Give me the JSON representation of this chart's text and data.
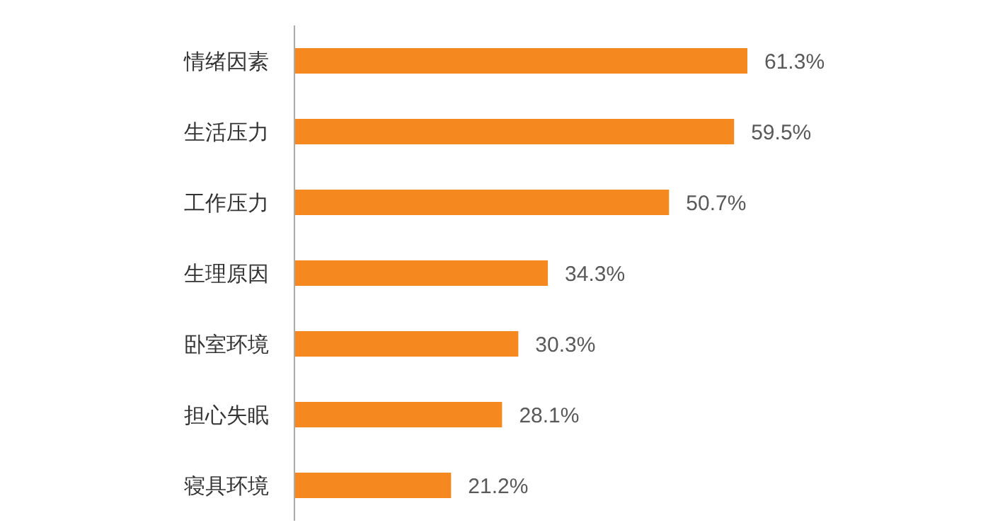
{
  "chart_data": {
    "type": "bar",
    "orientation": "horizontal",
    "categories": [
      "情绪因素",
      "生活压力",
      "工作压力",
      "生理原因",
      "卧室环境",
      "担心失眠",
      "寝具环境"
    ],
    "values": [
      61.3,
      59.5,
      50.7,
      34.3,
      30.3,
      28.1,
      21.2
    ],
    "value_labels": [
      "61.3%",
      "59.5%",
      "50.7%",
      "34.3%",
      "30.3%",
      "28.1%",
      "21.2%"
    ],
    "color": "#f5891f",
    "grid": false,
    "legend": false
  }
}
